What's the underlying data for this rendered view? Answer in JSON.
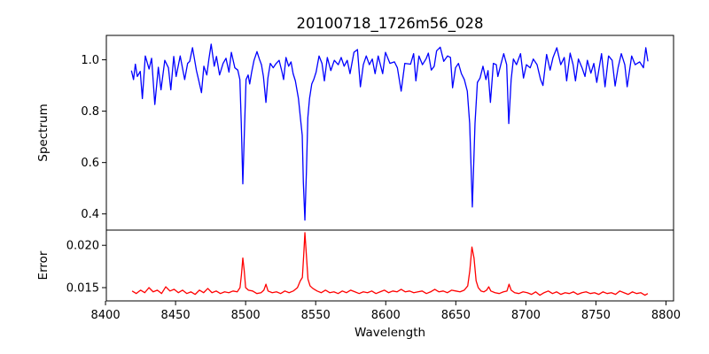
{
  "chart_data": [
    {
      "type": "line",
      "title": "20100718_1726m56_028",
      "xlabel": "",
      "ylabel": "Spectrum",
      "xlim": [
        8400.6,
        8805.4
      ],
      "ylim": [
        0.337,
        1.095
      ],
      "yticks": [
        0.4,
        0.6,
        0.8,
        1.0
      ],
      "ytick_labels": [
        "0.4",
        "0.6",
        "0.8",
        "1.0"
      ],
      "grid": false,
      "series": [
        {
          "name": "Spectrum",
          "color": "#0000ff",
          "x": [
            8418.5,
            8420.0,
            8421.3,
            8422.7,
            8424.8,
            8426.3,
            8428.4,
            8431.1,
            8432.9,
            8435.2,
            8437.7,
            8439.6,
            8442.3,
            8444.9,
            8446.6,
            8448.7,
            8450.4,
            8453.3,
            8456.5,
            8458.6,
            8460.1,
            8462.1,
            8464.9,
            8466.4,
            8468.5,
            8470.2,
            8472.3,
            8473.8,
            8475.4,
            8477.6,
            8479.2,
            8481.4,
            8483.9,
            8486.0,
            8488.1,
            8489.8,
            8492.3,
            8494.4,
            8495.9,
            8496.9,
            8498.0,
            8499.1,
            8500.3,
            8501.8,
            8502.9,
            8504.3,
            8506.0,
            8508.1,
            8509.8,
            8511.3,
            8512.7,
            8514.5,
            8515.9,
            8517.6,
            8519.7,
            8521.8,
            8523.9,
            8526.0,
            8527.1,
            8528.8,
            8530.7,
            8532.4,
            8533.9,
            8535.5,
            8537.7,
            8539.3,
            8540.4,
            8541.2,
            8542.3,
            8543.4,
            8544.4,
            8545.6,
            8547.2,
            8548.6,
            8550.3,
            8552.4,
            8554.5,
            8556.2,
            8558.3,
            8560.8,
            8563.3,
            8566.1,
            8568.2,
            8570.3,
            8572.5,
            8574.5,
            8577.3,
            8579.8,
            8581.9,
            8584.0,
            8586.1,
            8588.3,
            8590.4,
            8592.4,
            8594.6,
            8597.8,
            8599.8,
            8603.0,
            8606.2,
            8608.3,
            8611.0,
            8613.6,
            8617.7,
            8619.9,
            8621.5,
            8623.7,
            8626.2,
            8628.7,
            8630.4,
            8632.5,
            8634.6,
            8636.3,
            8638.9,
            8641.4,
            8644.1,
            8646.2,
            8647.7,
            8649.8,
            8651.9,
            8654.0,
            8656.1,
            8658.2,
            8659.9,
            8661.8,
            8663.7,
            8665.4,
            8667.3,
            8669.4,
            8671.5,
            8673.0,
            8674.7,
            8676.8,
            8678.9,
            8680.0,
            8682.1,
            8684.2,
            8686.3,
            8687.8,
            8689.5,
            8691.1,
            8693.3,
            8696.2,
            8698.3,
            8700.4,
            8703.1,
            8705.3,
            8708.0,
            8710.5,
            8712.2,
            8714.8,
            8717.3,
            8719.4,
            8722.1,
            8724.9,
            8727.4,
            8729.1,
            8731.6,
            8733.7,
            8735.4,
            8737.5,
            8740.1,
            8742.2,
            8743.9,
            8746.4,
            8748.5,
            8750.6,
            8754.0,
            8756.5,
            8759.0,
            8761.6,
            8763.7,
            8765.8,
            8768.1,
            8770.6,
            8772.3,
            8775.5,
            8778.0,
            8781.2,
            8783.9,
            8785.6,
            8787.1
          ],
          "y": [
            0.958,
            0.923,
            0.983,
            0.935,
            0.955,
            0.849,
            1.015,
            0.964,
            1.006,
            0.826,
            0.971,
            0.883,
            0.998,
            0.969,
            0.883,
            1.013,
            0.935,
            1.015,
            0.923,
            0.986,
            0.994,
            1.047,
            0.958,
            0.923,
            0.872,
            0.975,
            0.941,
            1.003,
            1.061,
            0.975,
            1.013,
            0.941,
            0.986,
            1.006,
            0.952,
            1.029,
            0.969,
            0.96,
            0.923,
            0.752,
            0.517,
            0.717,
            0.923,
            0.941,
            0.906,
            0.952,
            0.998,
            1.032,
            1.003,
            0.981,
            0.935,
            0.834,
            0.929,
            0.986,
            0.969,
            0.986,
            0.998,
            0.952,
            0.923,
            1.009,
            0.975,
            0.992,
            0.946,
            0.918,
            0.849,
            0.763,
            0.706,
            0.522,
            0.376,
            0.568,
            0.775,
            0.849,
            0.906,
            0.923,
            0.952,
            1.015,
            0.986,
            0.918,
            1.009,
            0.958,
            0.998,
            0.981,
            1.009,
            0.975,
            0.998,
            0.946,
            1.029,
            1.04,
            0.895,
            0.981,
            1.015,
            0.981,
            1.003,
            0.946,
            1.015,
            0.946,
            1.029,
            0.986,
            0.992,
            0.969,
            0.878,
            0.986,
            0.983,
            1.024,
            0.918,
            1.015,
            0.981,
            1.003,
            1.026,
            0.96,
            0.975,
            1.035,
            1.049,
            0.994,
            1.015,
            1.009,
            0.891,
            0.969,
            0.986,
            0.946,
            0.923,
            0.878,
            0.752,
            0.427,
            0.752,
            0.912,
            0.929,
            0.975,
            0.923,
            0.958,
            0.834,
            0.986,
            0.981,
            0.935,
            0.981,
            1.024,
            0.981,
            0.752,
            0.923,
            1.003,
            0.981,
            1.024,
            0.929,
            0.981,
            0.969,
            1.003,
            0.981,
            0.923,
            0.9,
            1.021,
            0.96,
            1.009,
            1.047,
            0.981,
            1.009,
            0.918,
            1.026,
            0.981,
            0.918,
            1.003,
            0.969,
            0.935,
            0.998,
            0.948,
            0.986,
            0.912,
            1.024,
            0.895,
            1.015,
            0.998,
            0.898,
            0.969,
            1.024,
            0.981,
            0.895,
            1.015,
            0.981,
            0.992,
            0.969,
            1.047,
            0.994
          ]
        }
      ]
    },
    {
      "type": "line",
      "xlabel": "Wavelength",
      "ylabel": "Error",
      "xlim": [
        8400.6,
        8805.4
      ],
      "ylim": [
        0.01343,
        0.0218
      ],
      "xticks": [
        8400,
        8450,
        8500,
        8550,
        8600,
        8650,
        8700,
        8750,
        8800
      ],
      "xtick_labels": [
        "8400",
        "8450",
        "8500",
        "8550",
        "8600",
        "8650",
        "8700",
        "8750",
        "8800"
      ],
      "yticks": [
        0.015,
        0.02
      ],
      "ytick_labels": [
        "0.015",
        "0.020"
      ],
      "grid": false,
      "series": [
        {
          "name": "Error",
          "color": "#ff0000",
          "x": [
            8419,
            8422,
            8425,
            8428,
            8431,
            8434,
            8437,
            8440,
            8443,
            8446,
            8449,
            8452,
            8455,
            8458,
            8461,
            8464,
            8467,
            8470,
            8473,
            8476,
            8479,
            8482,
            8485,
            8488,
            8491,
            8494,
            8496,
            8497,
            8498,
            8499,
            8500,
            8502,
            8505,
            8508,
            8511,
            8513,
            8514.5,
            8516,
            8519,
            8522,
            8525,
            8528,
            8531,
            8534,
            8537,
            8539,
            8540.5,
            8541.5,
            8542.3,
            8543.3,
            8544.5,
            8546,
            8548,
            8551,
            8554,
            8557,
            8560,
            8563,
            8566,
            8569,
            8572,
            8575,
            8578,
            8581,
            8584,
            8587,
            8590,
            8593,
            8596,
            8599,
            8602,
            8605,
            8608,
            8611,
            8614,
            8617,
            8620,
            8623,
            8626,
            8629,
            8632,
            8635,
            8638,
            8641,
            8644,
            8647,
            8650,
            8653,
            8656,
            8658.5,
            8660,
            8661.5,
            8663,
            8664.5,
            8666,
            8668,
            8670,
            8672,
            8673.5,
            8675,
            8678,
            8681,
            8684,
            8686.5,
            8688,
            8689.5,
            8692,
            8695,
            8698,
            8701,
            8704,
            8707,
            8710,
            8713,
            8716,
            8719,
            8722,
            8725,
            8728,
            8731,
            8734,
            8737,
            8740,
            8743,
            8746,
            8749,
            8752,
            8755,
            8758,
            8761,
            8764,
            8767,
            8770,
            8773,
            8776,
            8779,
            8782,
            8785,
            8787
          ],
          "y": [
            0.0146,
            0.0143,
            0.0147,
            0.0144,
            0.015,
            0.0145,
            0.0147,
            0.0143,
            0.0151,
            0.0146,
            0.0148,
            0.0144,
            0.0147,
            0.0143,
            0.0145,
            0.0142,
            0.0147,
            0.0144,
            0.0149,
            0.0144,
            0.0146,
            0.0143,
            0.0145,
            0.0144,
            0.0146,
            0.0145,
            0.015,
            0.0165,
            0.0185,
            0.017,
            0.015,
            0.0147,
            0.0146,
            0.0143,
            0.0144,
            0.0147,
            0.0154,
            0.0146,
            0.0144,
            0.0145,
            0.0143,
            0.0146,
            0.0144,
            0.0146,
            0.015,
            0.0158,
            0.0162,
            0.019,
            0.0215,
            0.019,
            0.016,
            0.0152,
            0.0149,
            0.0146,
            0.0144,
            0.0147,
            0.0144,
            0.0145,
            0.0143,
            0.0146,
            0.0144,
            0.0147,
            0.0145,
            0.0143,
            0.0145,
            0.0144,
            0.0146,
            0.0143,
            0.0145,
            0.0147,
            0.0144,
            0.0146,
            0.0145,
            0.0148,
            0.0145,
            0.0146,
            0.0144,
            0.0145,
            0.0146,
            0.0143,
            0.0145,
            0.0148,
            0.0145,
            0.0146,
            0.0144,
            0.0147,
            0.0146,
            0.0145,
            0.0147,
            0.0152,
            0.017,
            0.0198,
            0.0185,
            0.0158,
            0.015,
            0.0146,
            0.0145,
            0.0147,
            0.0151,
            0.0146,
            0.0144,
            0.0143,
            0.0145,
            0.0146,
            0.0154,
            0.0147,
            0.0144,
            0.0143,
            0.0145,
            0.0144,
            0.0142,
            0.0145,
            0.0141,
            0.0144,
            0.0146,
            0.0143,
            0.0145,
            0.0142,
            0.0144,
            0.0143,
            0.0145,
            0.0142,
            0.0144,
            0.0145,
            0.0143,
            0.0144,
            0.0142,
            0.0145,
            0.0143,
            0.0144,
            0.0142,
            0.0146,
            0.0144,
            0.0142,
            0.0145,
            0.0143,
            0.0144,
            0.0141,
            0.0143
          ]
        }
      ]
    }
  ]
}
